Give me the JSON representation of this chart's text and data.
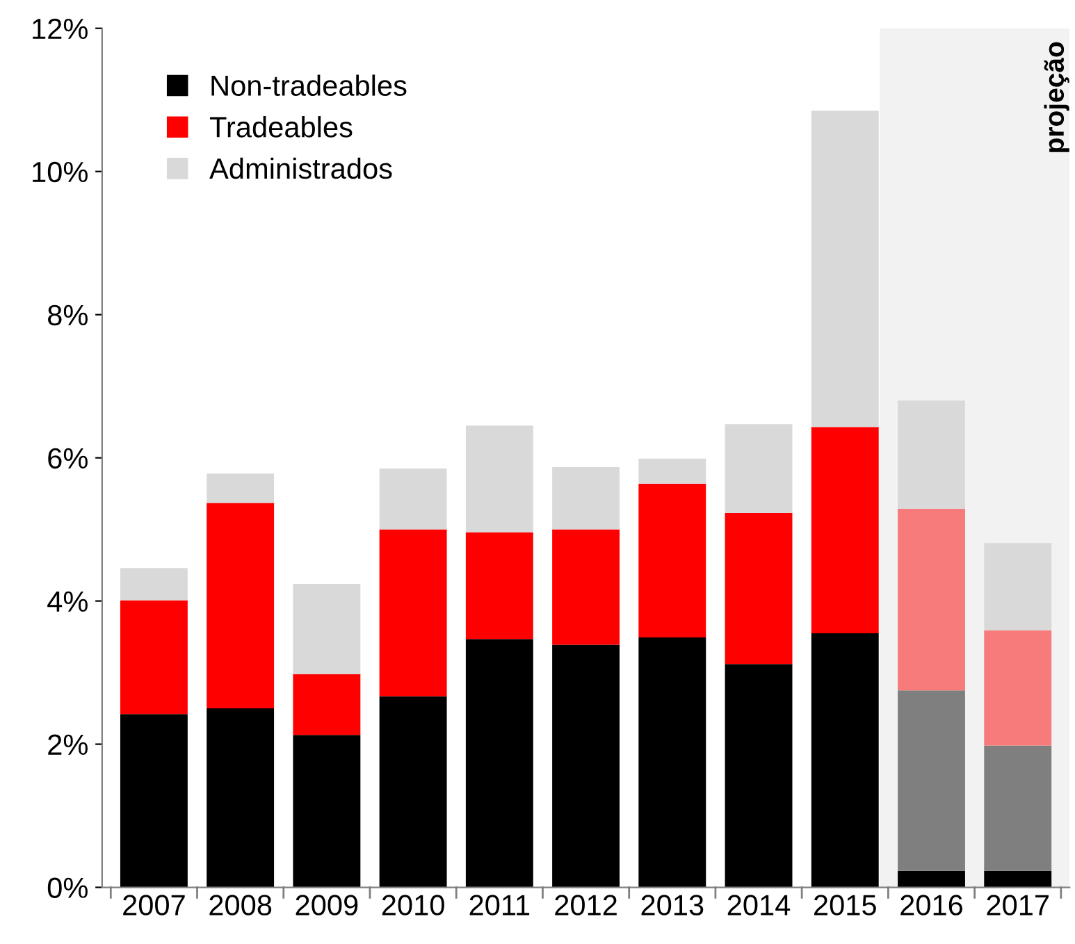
{
  "chart_data": {
    "type": "bar",
    "stacked": true,
    "categories": [
      "2007",
      "2008",
      "2009",
      "2010",
      "2011",
      "2012",
      "2013",
      "2014",
      "2015",
      "2016",
      "2017"
    ],
    "series": [
      {
        "color": "#000000",
        "values": [
          null,
          null,
          null,
          null,
          null,
          null,
          null,
          null,
          null,
          0.23,
          0.23
        ]
      },
      {
        "name": "Non-tradeables",
        "color": "#000000",
        "colors": [
          "#000000",
          "#000000",
          "#000000",
          "#000000",
          "#000000",
          "#000000",
          "#000000",
          "#000000",
          "#000000",
          "#7f7f7f",
          "#7f7f7f"
        ],
        "values": [
          2.42,
          2.5,
          2.13,
          2.67,
          3.47,
          3.39,
          3.49,
          3.12,
          3.55,
          2.52,
          1.75
        ]
      },
      {
        "name": "Tradeables",
        "color": "#ff0000",
        "colors": [
          "#ff0000",
          "#ff0000",
          "#ff0000",
          "#ff0000",
          "#ff0000",
          "#ff0000",
          "#ff0000",
          "#ff0000",
          "#ff0000",
          "#f77b7b",
          "#f77b7b"
        ],
        "values": [
          1.59,
          2.87,
          0.85,
          2.33,
          1.49,
          1.61,
          2.15,
          2.11,
          2.88,
          2.54,
          1.61
        ]
      },
      {
        "name": "Administrados",
        "color": "#d9d9d9",
        "values": [
          0.45,
          0.41,
          1.26,
          0.85,
          1.49,
          0.87,
          0.35,
          1.24,
          4.42,
          1.51,
          1.22
        ]
      }
    ],
    "ylim": [
      0,
      12
    ],
    "yticks": [
      {
        "value": 0,
        "label": "0%"
      },
      {
        "value": 2,
        "label": "2%"
      },
      {
        "value": 4,
        "label": "4%"
      },
      {
        "value": 6,
        "label": "6%"
      },
      {
        "value": 8,
        "label": "8%"
      },
      {
        "value": 10,
        "label": "10%"
      },
      {
        "value": 12,
        "label": "12%"
      }
    ],
    "bands": [
      {
        "axis": "x",
        "from": "2016",
        "to": "2017",
        "label": "projeção",
        "color": "#f2f2f2"
      }
    ],
    "legend": "top left",
    "marker": "square",
    "grid": false
  }
}
